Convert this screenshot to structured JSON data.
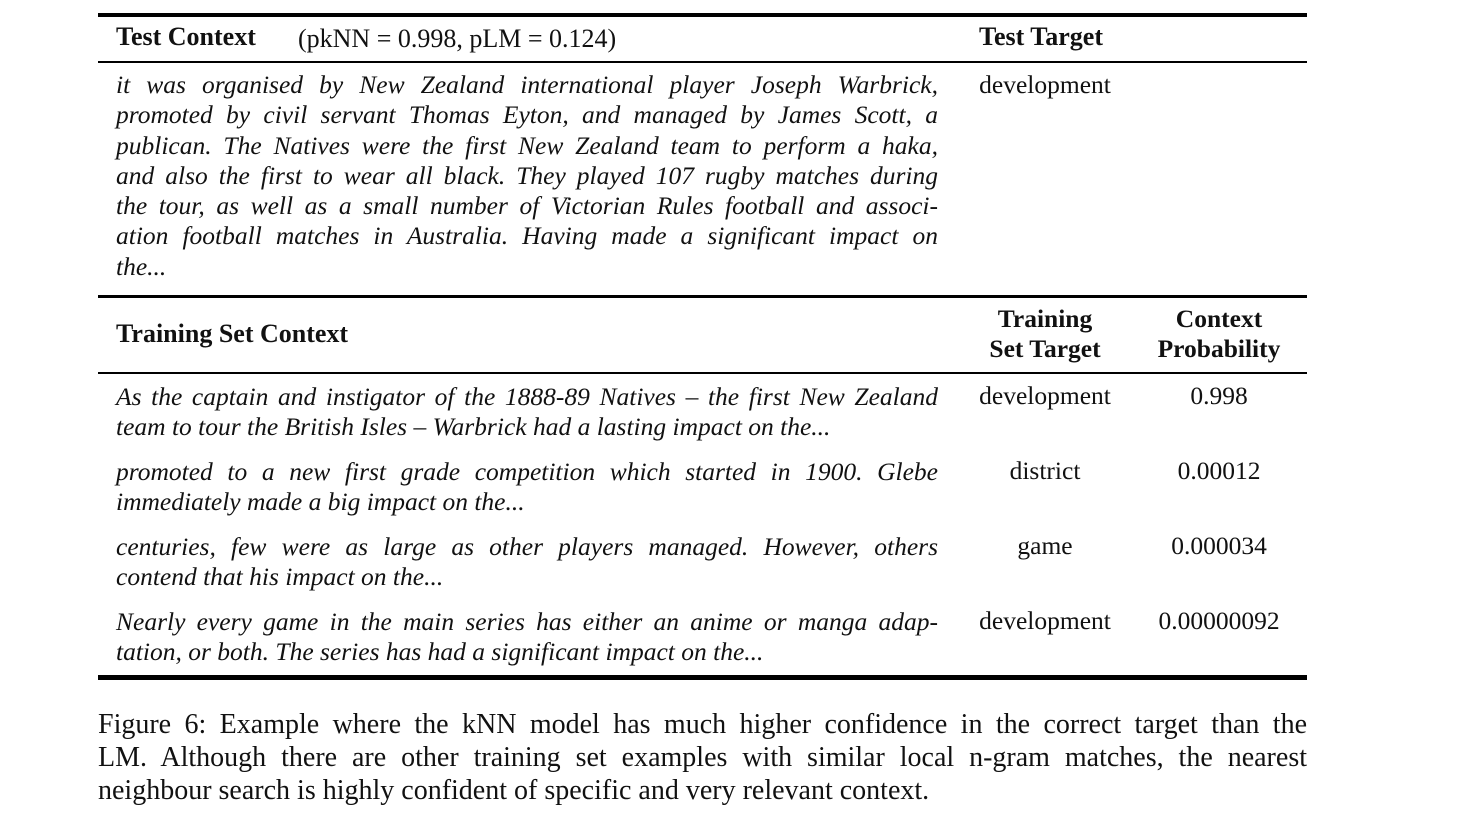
{
  "test_header": {
    "label": "Test Context",
    "probs": "(pkNN = 0.998, pLM = 0.124)",
    "target_label": "Test Target"
  },
  "test_row": {
    "context_lines": [
      "it was organised by New Zealand international player Joseph Warbrick,",
      "promoted by civil servant Thomas Eyton, and managed by James Scott, a",
      "publican. The Natives were the first New Zealand team to perform a haka,",
      "and also the first to wear all black. They played 107 rugby matches during",
      "the tour, as well as a small number of Victorian Rules football and associ-",
      "ation football matches in Australia.  Having made a significant impact on",
      "the..."
    ],
    "target": "development"
  },
  "train_header": {
    "label": "Training Set Context",
    "target_label_1": "Training",
    "target_label_2": "Set Target",
    "prob_label_1": "Context",
    "prob_label_2": "Probability"
  },
  "train_rows": [
    {
      "context_lines": [
        "As the captain and instigator of the 1888-89 Natives – the first New Zealand",
        "team to tour the British Isles – Warbrick had a lasting impact on the..."
      ],
      "target": "development",
      "probability": "0.998"
    },
    {
      "context_lines": [
        "promoted to a new first grade competition which started in 1900.  Glebe",
        "immediately made a big impact on the..."
      ],
      "target": "district",
      "probability": "0.00012"
    },
    {
      "context_lines": [
        "centuries, few were as large as other players managed.  However, others",
        "contend that his impact on the..."
      ],
      "target": "game",
      "probability": "0.000034"
    },
    {
      "context_lines": [
        "Nearly every game in the main series has either an anime or manga adap-",
        "tation, or both. The series has had a significant impact on the..."
      ],
      "target": "development",
      "probability": "0.00000092"
    }
  ],
  "caption": {
    "lines": [
      "Figure 6: Example where the kNN model has much higher confidence in the correct target than the",
      "LM. Although there are other training set examples with similar local n-gram matches, the nearest",
      "neighbour search is highly confident of specific and very relevant context."
    ]
  }
}
